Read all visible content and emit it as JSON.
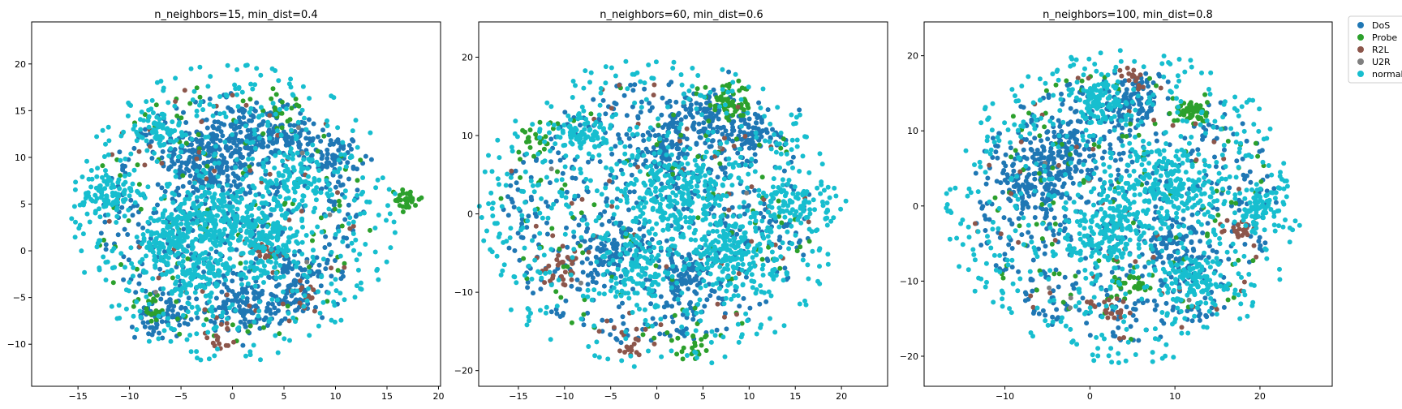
{
  "colors": {
    "DoS": "#1f77b4",
    "Probe": "#2ca02c",
    "R2L": "#8c564b",
    "U2R": "#7f7f7f",
    "normal": "#17becf",
    "axes": "#000000",
    "background": "#ffffff"
  },
  "legend": {
    "placement": "upper-right, outside plots",
    "entries": [
      {
        "label": "DoS",
        "color": "#1f77b4"
      },
      {
        "label": "Probe",
        "color": "#2ca02c"
      },
      {
        "label": "R2L",
        "color": "#8c564b"
      },
      {
        "label": "U2R",
        "color": "#7f7f7f"
      },
      {
        "label": "normal",
        "color": "#17becf"
      }
    ]
  },
  "chart_data": [
    {
      "type": "scatter",
      "title": "n_neighbors=15, min_dist=0.4",
      "xlabel": "",
      "ylabel": "",
      "xlim": [
        -19.5,
        20.2
      ],
      "ylim": [
        -14.5,
        24.5
      ],
      "xticks": [
        -15,
        -10,
        -5,
        0,
        5,
        10,
        15,
        20
      ],
      "yticks": [
        -10,
        -5,
        0,
        5,
        10,
        15,
        20
      ],
      "grid": false,
      "series": [
        {
          "name": "DoS",
          "color": "#1f77b4",
          "clusters": [
            {
              "x": -4,
              "y": 10,
              "r": 2.5,
              "n": 90
            },
            {
              "x": 0,
              "y": 12,
              "r": 3.5,
              "n": 120
            },
            {
              "x": 4,
              "y": 12,
              "r": 2.5,
              "n": 90
            },
            {
              "x": -1,
              "y": 8,
              "r": 2.5,
              "n": 90
            },
            {
              "x": 6,
              "y": -4,
              "r": 2.5,
              "n": 80
            },
            {
              "x": 1,
              "y": -6,
              "r": 2.5,
              "n": 80
            },
            {
              "x": -7,
              "y": -7,
              "r": 2,
              "n": 60
            },
            {
              "x": 10,
              "y": 10,
              "r": 2,
              "n": 60
            },
            {
              "x": 0,
              "y": 4,
              "r": 13,
              "n": 450
            }
          ]
        },
        {
          "name": "Probe",
          "color": "#2ca02c",
          "clusters": [
            {
              "x": 17,
              "y": 5.5,
              "r": 1,
              "n": 30
            },
            {
              "x": -8,
              "y": -6,
              "r": 1.5,
              "n": 20
            },
            {
              "x": 0,
              "y": 4,
              "r": 14,
              "n": 110
            },
            {
              "x": 5,
              "y": 15.5,
              "r": 1.5,
              "n": 15
            }
          ]
        },
        {
          "name": "R2L",
          "color": "#8c564b",
          "clusters": [
            {
              "x": 3,
              "y": 0,
              "r": 1.5,
              "n": 20
            },
            {
              "x": 7,
              "y": -5,
              "r": 1.5,
              "n": 15
            },
            {
              "x": -1,
              "y": -9,
              "r": 1.5,
              "n": 15
            },
            {
              "x": 0,
              "y": 4,
              "r": 14,
              "n": 60
            }
          ]
        },
        {
          "name": "U2R",
          "color": "#7f7f7f",
          "clusters": [
            {
              "x": 0,
              "y": 4,
              "r": 12,
              "n": 6
            }
          ]
        },
        {
          "name": "normal",
          "color": "#17becf",
          "clusters": [
            {
              "x": -2,
              "y": 3.5,
              "r": 3.5,
              "n": 200
            },
            {
              "x": 3,
              "y": 2,
              "r": 3.5,
              "n": 200
            },
            {
              "x": -6,
              "y": 1,
              "r": 2.5,
              "n": 120
            },
            {
              "x": -12,
              "y": 6,
              "r": 2,
              "n": 80
            },
            {
              "x": -7,
              "y": 13,
              "r": 2,
              "n": 70
            },
            {
              "x": 6,
              "y": 8,
              "r": 2.5,
              "n": 80
            },
            {
              "x": -3,
              "y": -3,
              "r": 2.5,
              "n": 90
            },
            {
              "x": 0,
              "y": 4,
              "r": 16,
              "n": 520
            }
          ]
        }
      ]
    },
    {
      "type": "scatter",
      "title": "n_neighbors=60, min_dist=0.6",
      "xlabel": "",
      "ylabel": "",
      "xlim": [
        -19.3,
        25.0
      ],
      "ylim": [
        -22.0,
        24.5
      ],
      "xticks": [
        -15,
        -10,
        -5,
        0,
        5,
        10,
        15,
        20
      ],
      "yticks": [
        -20,
        -10,
        0,
        10,
        20
      ],
      "grid": false,
      "series": [
        {
          "name": "DoS",
          "color": "#1f77b4",
          "clusters": [
            {
              "x": 5,
              "y": 12,
              "r": 3.5,
              "n": 110
            },
            {
              "x": 10,
              "y": 10,
              "r": 2.5,
              "n": 70
            },
            {
              "x": 1,
              "y": 8,
              "r": 3,
              "n": 80
            },
            {
              "x": -5,
              "y": -5,
              "r": 3,
              "n": 100
            },
            {
              "x": 3,
              "y": -8,
              "r": 3,
              "n": 90
            },
            {
              "x": 0,
              "y": 0,
              "r": 17,
              "n": 520
            }
          ]
        },
        {
          "name": "Probe",
          "color": "#2ca02c",
          "clusters": [
            {
              "x": 8,
              "y": 14,
              "r": 2,
              "n": 60
            },
            {
              "x": -13,
              "y": 9,
              "r": 1.5,
              "n": 20
            },
            {
              "x": 4,
              "y": -17,
              "r": 1.5,
              "n": 20
            },
            {
              "x": 0,
              "y": 0,
              "r": 17,
              "n": 110
            }
          ]
        },
        {
          "name": "R2L",
          "color": "#8c564b",
          "clusters": [
            {
              "x": -10,
              "y": -7,
              "r": 2,
              "n": 30
            },
            {
              "x": 0,
              "y": 0,
              "r": 17,
              "n": 60
            },
            {
              "x": -3,
              "y": -17,
              "r": 1.5,
              "n": 15
            }
          ]
        },
        {
          "name": "U2R",
          "color": "#7f7f7f",
          "clusters": [
            {
              "x": 0,
              "y": 0,
              "r": 14,
              "n": 6
            }
          ]
        },
        {
          "name": "normal",
          "color": "#17becf",
          "clusters": [
            {
              "x": 2,
              "y": 2,
              "r": 5,
              "n": 230
            },
            {
              "x": 8,
              "y": -5,
              "r": 4,
              "n": 170
            },
            {
              "x": -8,
              "y": 10,
              "r": 2.5,
              "n": 80
            },
            {
              "x": 15,
              "y": 1,
              "r": 3,
              "n": 90
            },
            {
              "x": -2,
              "y": -7,
              "r": 3,
              "n": 80
            },
            {
              "x": 0,
              "y": 0,
              "r": 20,
              "n": 560
            }
          ]
        }
      ]
    },
    {
      "type": "scatter",
      "title": "n_neighbors=100, min_dist=0.8",
      "xlabel": "",
      "ylabel": "",
      "xlim": [
        -19.5,
        28.5
      ],
      "ylim": [
        -24.0,
        24.5
      ],
      "xticks": [
        -10,
        0,
        10,
        20
      ],
      "yticks": [
        -20,
        -10,
        0,
        10,
        20
      ],
      "grid": false,
      "series": [
        {
          "name": "DoS",
          "color": "#1f77b4",
          "clusters": [
            {
              "x": -6,
              "y": 3,
              "r": 4,
              "n": 150
            },
            {
              "x": -3,
              "y": 8,
              "r": 3,
              "n": 90
            },
            {
              "x": 5,
              "y": 14,
              "r": 3,
              "n": 90
            },
            {
              "x": 10,
              "y": -5,
              "r": 3,
              "n": 90
            },
            {
              "x": 4,
              "y": 0,
              "r": 18,
              "n": 520
            }
          ]
        },
        {
          "name": "Probe",
          "color": "#2ca02c",
          "clusters": [
            {
              "x": 12,
              "y": 12.5,
              "r": 1.5,
              "n": 60
            },
            {
              "x": 5,
              "y": -10,
              "r": 2,
              "n": 30
            },
            {
              "x": 4,
              "y": 0,
              "r": 18,
              "n": 110
            }
          ]
        },
        {
          "name": "R2L",
          "color": "#8c564b",
          "clusters": [
            {
              "x": 18,
              "y": -3,
              "r": 1.5,
              "n": 25
            },
            {
              "x": 3,
              "y": -14,
              "r": 2,
              "n": 20
            },
            {
              "x": 5,
              "y": 17,
              "r": 1.5,
              "n": 15
            },
            {
              "x": 4,
              "y": 0,
              "r": 18,
              "n": 60
            }
          ]
        },
        {
          "name": "U2R",
          "color": "#7f7f7f",
          "clusters": [
            {
              "x": 4,
              "y": 0,
              "r": 15,
              "n": 6
            }
          ]
        },
        {
          "name": "normal",
          "color": "#17becf",
          "clusters": [
            {
              "x": 9,
              "y": 3,
              "r": 5,
              "n": 230
            },
            {
              "x": 2,
              "y": -3,
              "r": 4,
              "n": 160
            },
            {
              "x": 1,
              "y": 14,
              "r": 2.5,
              "n": 90
            },
            {
              "x": 12,
              "y": -10,
              "r": 3,
              "n": 110
            },
            {
              "x": 20,
              "y": 0,
              "r": 2.5,
              "n": 80
            },
            {
              "x": 4,
              "y": 0,
              "r": 21,
              "n": 560
            }
          ]
        }
      ]
    }
  ]
}
